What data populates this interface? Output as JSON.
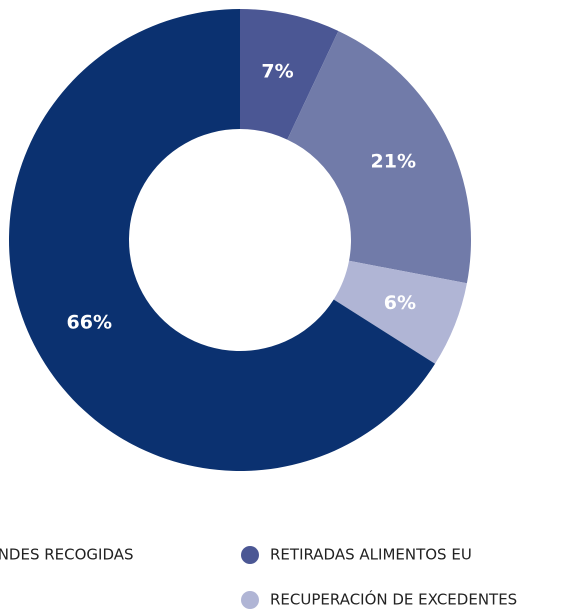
{
  "chart_data": {
    "type": "donut",
    "categories": [
      "RETIRADAS ALIMENTOS EU",
      null,
      "RECUPERACIÓN DE EXCEDENTES",
      "GRANDES RECOGIDAS"
    ],
    "values": [
      7,
      21,
      6,
      66
    ],
    "value_labels": [
      "7%",
      "21%",
      "6%",
      "66%"
    ],
    "colors": [
      "#4b5794",
      "#717ba9",
      "#b0b5d5",
      "#0b3170"
    ]
  }
}
